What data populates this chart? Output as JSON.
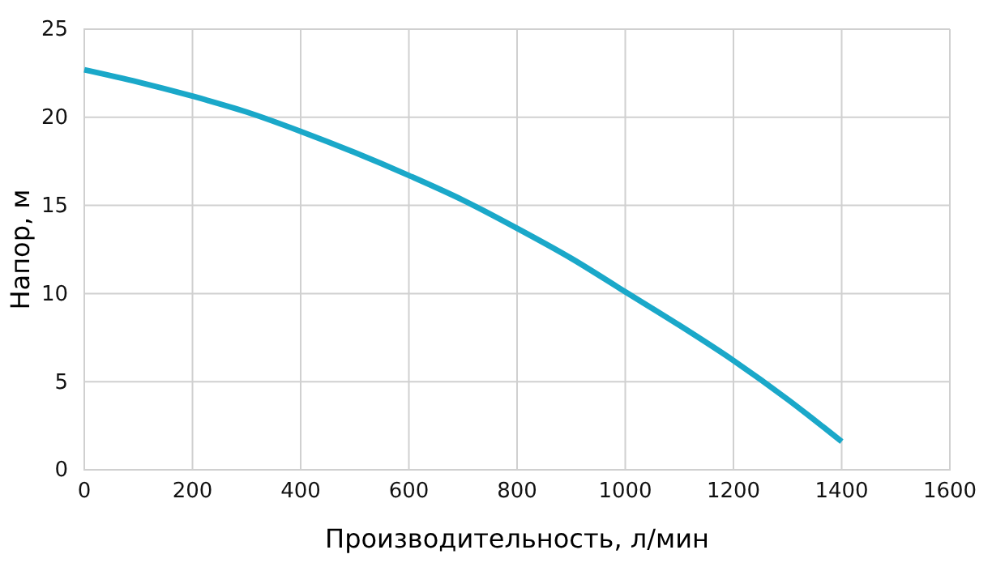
{
  "chart_data": {
    "type": "line",
    "xlabel": "Производительность, л/мин",
    "ylabel": "Напор, м",
    "x": [
      0,
      100,
      200,
      300,
      400,
      500,
      600,
      700,
      800,
      900,
      1000,
      1100,
      1200,
      1300,
      1400
    ],
    "series": [
      {
        "color": "#1aa8c9",
        "values": [
          22.7,
          22.0,
          21.2,
          20.3,
          19.2,
          18.0,
          16.7,
          15.3,
          13.7,
          12.0,
          10.1,
          8.2,
          6.2,
          4.0,
          1.6
        ]
      }
    ],
    "xlim": [
      0,
      1600
    ],
    "xticks": [
      0,
      200,
      400,
      600,
      800,
      1000,
      1200,
      1400,
      1600
    ],
    "ylim": [
      0,
      25
    ],
    "yticks": [
      0,
      5,
      10,
      15,
      20,
      25
    ],
    "grid": true,
    "marker": "none",
    "line_style": "solid"
  }
}
